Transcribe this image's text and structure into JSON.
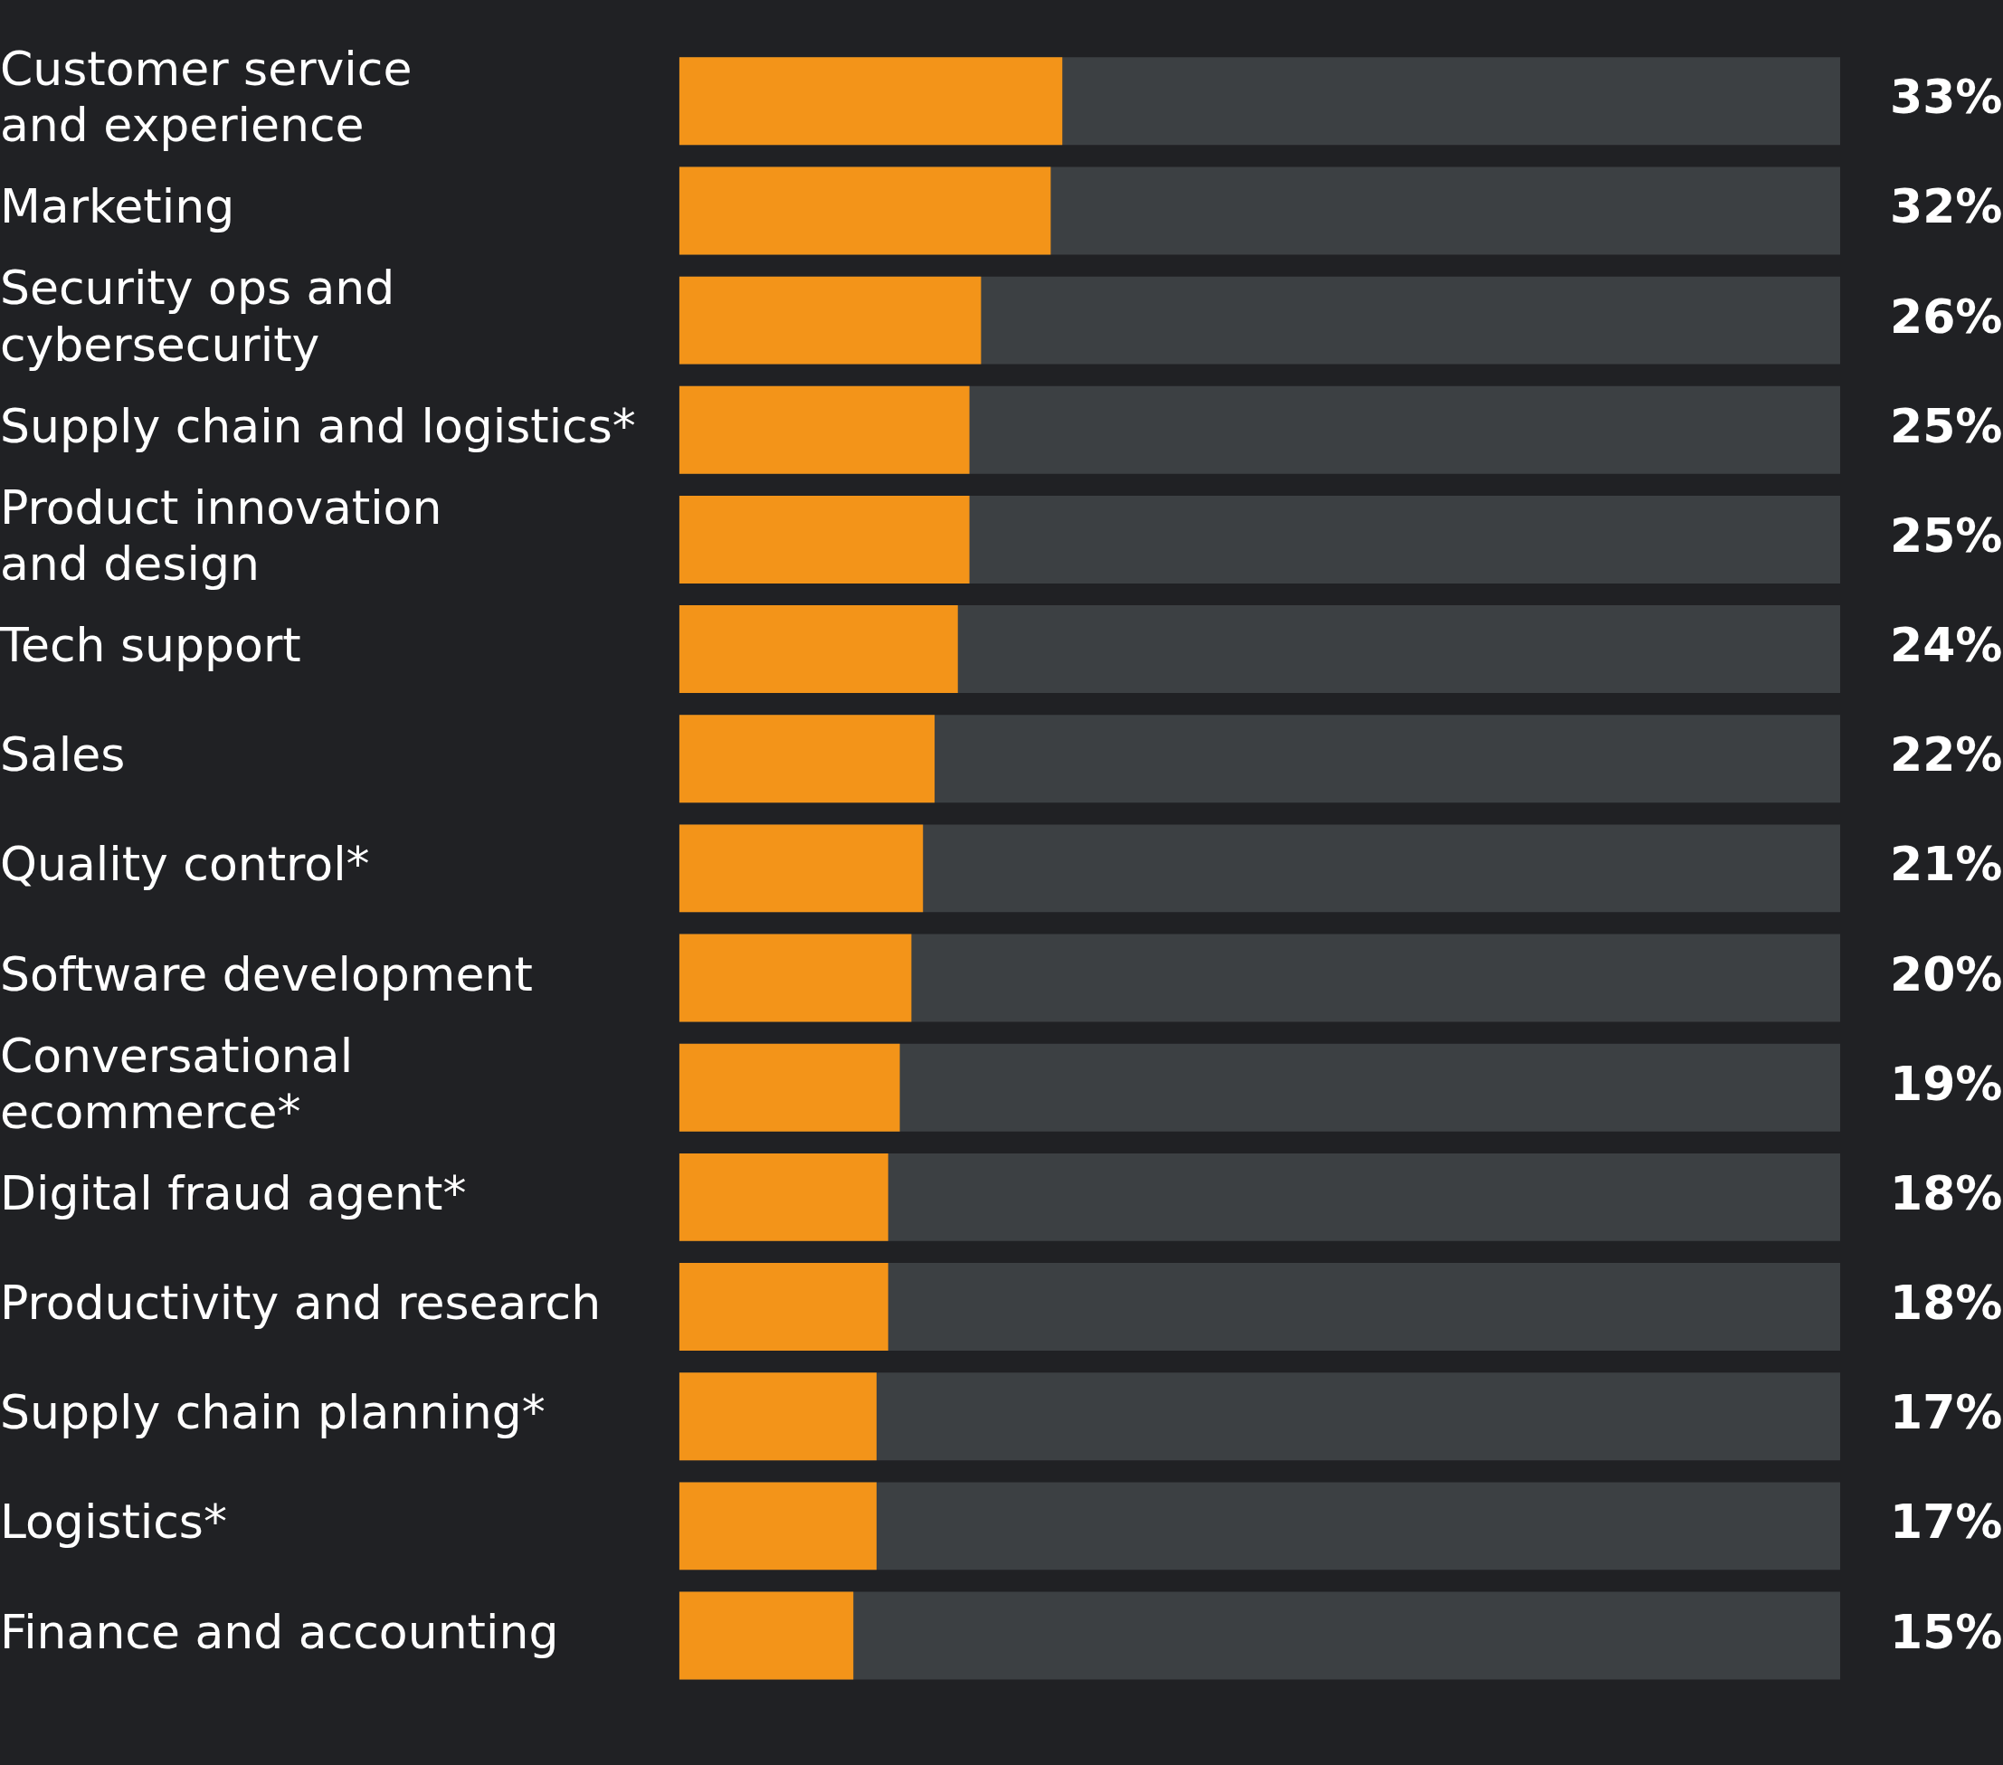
{
  "chart_data": {
    "type": "bar",
    "orientation": "horizontal",
    "categories": [
      "Customer service\nand experience",
      "Marketing",
      "Security ops and\ncybersecurity",
      "Supply chain and logistics*",
      "Product innovation\nand design",
      "Tech support",
      "Sales",
      "Quality control*",
      "Software development",
      "Conversational\necommerce*",
      "Digital fraud agent*",
      "Productivity and research",
      "Supply chain planning*",
      "Logistics*",
      "Finance and accounting"
    ],
    "values": [
      33,
      32,
      26,
      25,
      25,
      24,
      22,
      21,
      20,
      19,
      18,
      18,
      17,
      17,
      15
    ],
    "value_labels": [
      "33%",
      "32%",
      "26%",
      "25%",
      "25%",
      "24%",
      "22%",
      "21%",
      "20%",
      "19%",
      "18%",
      "18%",
      "17%",
      "17%",
      "15%"
    ],
    "color": "#f39419",
    "xlim": [
      0,
      100
    ],
    "tick_labels": "y",
    "grid": false,
    "legend": false
  }
}
